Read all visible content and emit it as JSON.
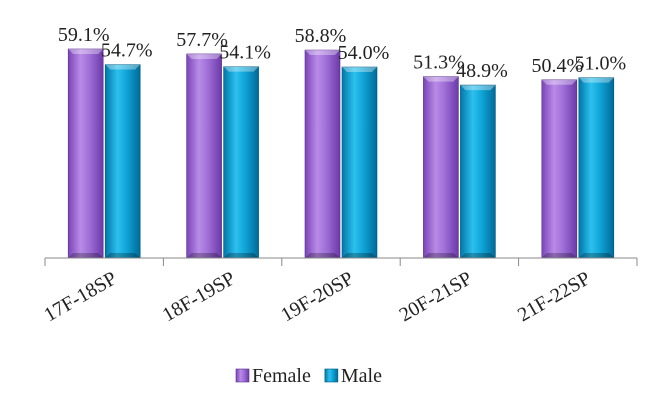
{
  "chart_data": {
    "type": "bar",
    "categories": [
      "17F-18SP",
      "18F-19SP",
      "19F-20SP",
      "20F-21SP",
      "21F-22SP"
    ],
    "series": [
      {
        "name": "Female",
        "values": [
          59.1,
          57.7,
          58.8,
          51.3,
          50.4
        ],
        "labels": [
          "59.1%",
          "57.7%",
          "58.8%",
          "51.3%",
          "50.4%"
        ],
        "color": "#9966CC"
      },
      {
        "name": "Male",
        "values": [
          54.7,
          54.1,
          54.0,
          48.9,
          51.0
        ],
        "labels": [
          "54.7%",
          "54.1%",
          "54.0%",
          "48.9%",
          "51.0%"
        ],
        "color": "#0096CC"
      }
    ],
    "legend": {
      "position": "bottom",
      "items": [
        "Female",
        "Male"
      ]
    },
    "title": "",
    "xlabel": "",
    "ylabel": "",
    "ylim": [
      0,
      60
    ],
    "grid": false,
    "style": "3d-bevel"
  }
}
